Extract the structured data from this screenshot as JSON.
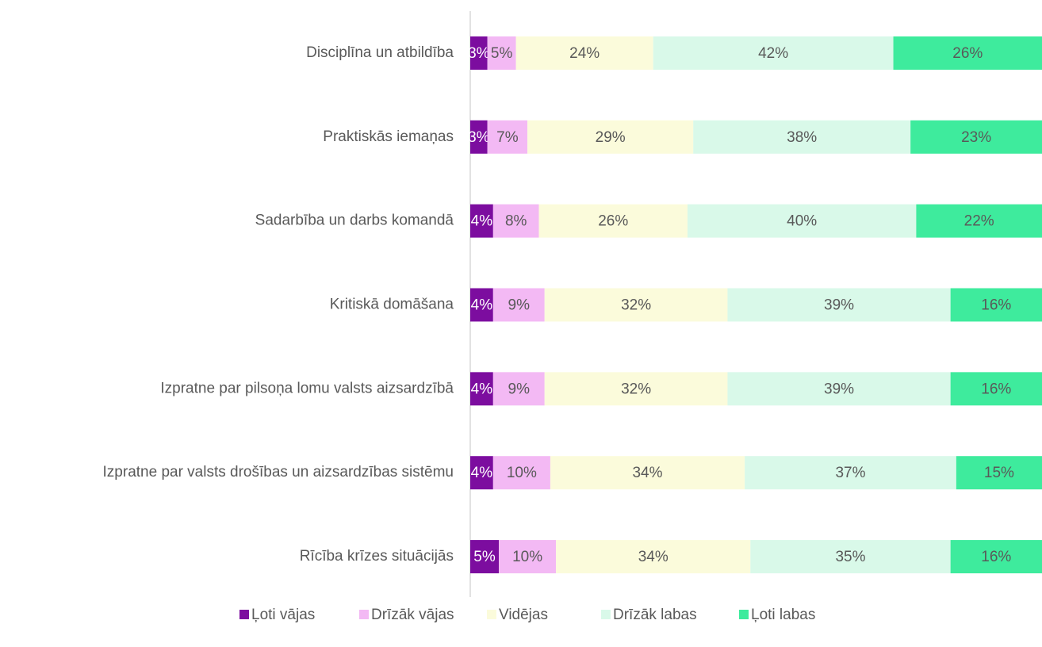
{
  "chart_data": {
    "type": "stacked_bar_horizontal",
    "categories": [
      "Disciplīna un atbildība",
      "Praktiskās iemaņas",
      "Sadarbība un darbs komandā",
      "Kritiskā domāšana",
      "Izpratne par pilsoņa lomu valsts aizsardzībā",
      "Izpratne par valsts drošības un aizsardzības sistēmu",
      "Rīcība krīzes situācijās"
    ],
    "xlim": [
      0,
      100
    ],
    "legend": "bottom",
    "series": [
      {
        "name": "Ļoti vājas",
        "color": "#7c0d9f",
        "values": [
          3,
          3,
          4,
          4,
          4,
          4,
          5
        ],
        "value_labels": [
          "3%",
          "3%",
          "4%",
          "4%",
          "4%",
          "4%",
          "5%"
        ]
      },
      {
        "name": "Drīzāk vājas",
        "color": "#f3b9f4",
        "values": [
          5,
          7,
          8,
          9,
          9,
          10,
          10
        ],
        "value_labels": [
          "5%",
          "7%",
          "8%",
          "9%",
          "9%",
          "10%",
          "10%"
        ]
      },
      {
        "name": "Vidējas",
        "color": "#fbfbdb",
        "values": [
          24,
          29,
          26,
          32,
          32,
          34,
          34
        ],
        "value_labels": [
          "24%",
          "29%",
          "26%",
          "32%",
          "32%",
          "34%",
          "34%"
        ]
      },
      {
        "name": "Drīzāk labas",
        "color": "#d9f9e9",
        "values": [
          42,
          38,
          40,
          39,
          39,
          37,
          35
        ],
        "value_labels": [
          "42%",
          "38%",
          "40%",
          "39%",
          "39%",
          "37%",
          "35%"
        ]
      },
      {
        "name": "Ļoti labas",
        "color": "#3eeb9d",
        "values": [
          26,
          23,
          22,
          16,
          16,
          15,
          16
        ],
        "value_labels": [
          "26%",
          "23%",
          "22%",
          "16%",
          "16%",
          "15%",
          "16%"
        ]
      }
    ]
  }
}
